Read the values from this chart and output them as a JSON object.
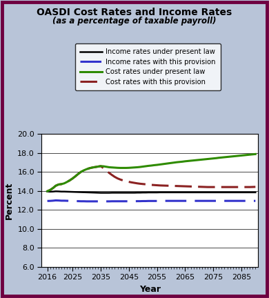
{
  "title_line1": "OASDI Cost Rates and Income Rates",
  "title_line2": "(as a percentage of taxable payroll)",
  "xlabel": "Year",
  "ylabel": "Percent",
  "xlim": [
    2014,
    2091
  ],
  "ylim": [
    6.0,
    20.0
  ],
  "yticks": [
    6.0,
    8.0,
    10.0,
    12.0,
    14.0,
    16.0,
    18.0,
    20.0
  ],
  "xticks": [
    2016,
    2025,
    2035,
    2045,
    2055,
    2065,
    2075,
    2085
  ],
  "background_color": "#b8c4d8",
  "plot_bg_color": "#ffffff",
  "border_color": "#6e0040",
  "years": [
    2016,
    2017,
    2018,
    2019,
    2020,
    2021,
    2022,
    2023,
    2024,
    2025,
    2026,
    2027,
    2028,
    2029,
    2030,
    2031,
    2032,
    2033,
    2034,
    2035,
    2036,
    2037,
    2038,
    2039,
    2040,
    2041,
    2042,
    2043,
    2044,
    2045,
    2046,
    2047,
    2048,
    2049,
    2050,
    2051,
    2052,
    2053,
    2054,
    2055,
    2056,
    2057,
    2058,
    2059,
    2060,
    2061,
    2062,
    2063,
    2064,
    2065,
    2066,
    2067,
    2068,
    2069,
    2070,
    2071,
    2072,
    2073,
    2074,
    2075,
    2076,
    2077,
    2078,
    2079,
    2080,
    2081,
    2082,
    2083,
    2084,
    2085,
    2086,
    2087,
    2088,
    2089,
    2090
  ],
  "income_present_law": [
    13.94,
    13.92,
    13.93,
    13.96,
    13.95,
    13.93,
    13.93,
    13.92,
    13.91,
    13.9,
    13.89,
    13.88,
    13.87,
    13.86,
    13.85,
    13.84,
    13.83,
    13.82,
    13.81,
    13.8,
    13.8,
    13.8,
    13.8,
    13.81,
    13.81,
    13.81,
    13.81,
    13.81,
    13.81,
    13.81,
    13.81,
    13.81,
    13.82,
    13.82,
    13.83,
    13.83,
    13.84,
    13.84,
    13.84,
    13.84,
    13.85,
    13.85,
    13.85,
    13.85,
    13.85,
    13.85,
    13.85,
    13.85,
    13.85,
    13.85,
    13.85,
    13.85,
    13.85,
    13.85,
    13.85,
    13.85,
    13.85,
    13.85,
    13.85,
    13.85,
    13.85,
    13.85,
    13.85,
    13.85,
    13.85,
    13.85,
    13.85,
    13.85,
    13.85,
    13.85,
    13.85,
    13.85,
    13.85,
    13.85,
    13.85
  ],
  "income_provision": [
    12.94,
    12.95,
    12.97,
    13.0,
    12.99,
    12.97,
    12.97,
    12.96,
    12.95,
    12.94,
    12.93,
    12.92,
    12.91,
    12.91,
    12.9,
    12.9,
    12.9,
    12.9,
    12.9,
    12.9,
    12.9,
    12.9,
    12.9,
    12.91,
    12.91,
    12.91,
    12.91,
    12.91,
    12.91,
    12.91,
    12.91,
    12.91,
    12.92,
    12.92,
    12.93,
    12.93,
    12.94,
    12.94,
    12.94,
    12.94,
    12.95,
    12.95,
    12.95,
    12.95,
    12.95,
    12.95,
    12.95,
    12.95,
    12.95,
    12.95,
    12.95,
    12.95,
    12.95,
    12.95,
    12.95,
    12.95,
    12.95,
    12.95,
    12.95,
    12.95,
    12.95,
    12.95,
    12.95,
    12.95,
    12.95,
    12.95,
    12.95,
    12.95,
    12.95,
    12.95,
    12.95,
    12.95,
    12.95,
    12.95,
    12.95
  ],
  "cost_present_law": [
    13.97,
    14.1,
    14.3,
    14.55,
    14.68,
    14.72,
    14.8,
    14.95,
    15.12,
    15.32,
    15.55,
    15.8,
    16.02,
    16.18,
    16.3,
    16.4,
    16.47,
    16.52,
    16.57,
    16.62,
    16.6,
    16.55,
    16.5,
    16.48,
    16.46,
    16.44,
    16.43,
    16.43,
    16.43,
    16.44,
    16.46,
    16.48,
    16.5,
    16.53,
    16.57,
    16.61,
    16.65,
    16.68,
    16.72,
    16.75,
    16.79,
    16.83,
    16.87,
    16.91,
    16.95,
    16.99,
    17.03,
    17.06,
    17.09,
    17.13,
    17.16,
    17.19,
    17.22,
    17.25,
    17.28,
    17.31,
    17.34,
    17.37,
    17.4,
    17.43,
    17.46,
    17.5,
    17.53,
    17.56,
    17.59,
    17.62,
    17.65,
    17.68,
    17.71,
    17.74,
    17.77,
    17.8,
    17.83,
    17.86,
    17.89
  ],
  "cost_provision": [
    13.97,
    14.1,
    14.3,
    14.55,
    14.68,
    14.72,
    14.8,
    14.95,
    15.12,
    15.32,
    15.55,
    15.8,
    16.02,
    16.18,
    16.3,
    16.4,
    16.47,
    16.52,
    16.57,
    16.62,
    16.4,
    16.15,
    15.9,
    15.68,
    15.48,
    15.32,
    15.2,
    15.1,
    15.02,
    14.96,
    14.9,
    14.85,
    14.8,
    14.76,
    14.73,
    14.7,
    14.67,
    14.64,
    14.62,
    14.6,
    14.58,
    14.57,
    14.56,
    14.55,
    14.54,
    14.53,
    14.52,
    14.51,
    14.5,
    14.49,
    14.48,
    14.47,
    14.46,
    14.45,
    14.44,
    14.43,
    14.42,
    14.41,
    14.41,
    14.41,
    14.41,
    14.41,
    14.41,
    14.41,
    14.41,
    14.41,
    14.41,
    14.41,
    14.41,
    14.41,
    14.41,
    14.41,
    14.41,
    14.42,
    14.43
  ],
  "income_present_law_color": "#000000",
  "income_provision_color": "#3333cc",
  "cost_present_law_color": "#2e8b00",
  "cost_provision_color": "#8b2222",
  "legend_labels": [
    "Income rates under present law",
    "Income rates with this provision",
    "Cost rates under present law",
    "Cost rates with this provision"
  ],
  "title_fontsize": 10,
  "subtitle_fontsize": 8.5,
  "axis_label_fontsize": 9,
  "tick_fontsize": 8
}
